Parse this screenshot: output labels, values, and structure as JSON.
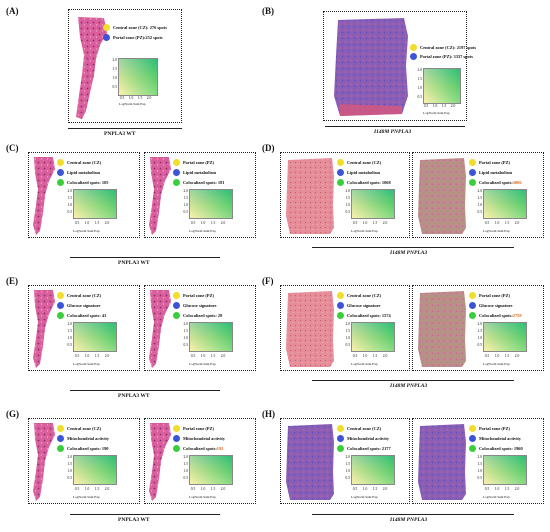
{
  "colors": {
    "cz": "#f2dd2a",
    "pz": "#3c54d6",
    "coloc": "#3ccd3c",
    "highlight": "#e0651c",
    "tissue": "#c9519a"
  },
  "icons": {
    "legend_dot": "circle",
    "tissue": "liver-tissue-section"
  },
  "axis": {
    "yticks": [
      "2.0",
      "1.5",
      "1.0",
      "0.5"
    ],
    "xticks": [
      "0.5",
      "1.0",
      "1.5",
      "2.0"
    ],
    "label": "LogNorm Sum Exp"
  },
  "panels": {
    "A": {
      "label": "(A)",
      "caption": "PNPLA3 WT",
      "cz": "Central zone (CZ): 276 spots",
      "pz": "Portal zone (PZ):252 spots"
    },
    "B": {
      "label": "(B)",
      "caption": "I148M PNPLA3",
      "cz": "Central zone (CZ): 2197 spots",
      "pz": "Portal zone (PZ): 3337 spots"
    },
    "C": {
      "label": "(C)",
      "caption": "PNPLA3 WT",
      "left": {
        "zone": "Central zone (CZ)",
        "sig": "Lipid metabolism",
        "coloc": "Colocalized spots: 105"
      },
      "right": {
        "zone": "Portal zone (PZ)",
        "sig": "Lipid metabolism",
        "coloc": "Colocalized spots: 181"
      }
    },
    "D": {
      "label": "(D)",
      "caption": "I148M PNPLA3",
      "left": {
        "zone": "Central zone (CZ)",
        "sig": "Lipid metabolism",
        "coloc": "Colocalized spots: 1068"
      },
      "right": {
        "zone": "Portal zone (PZ)",
        "sig": "Lipid metabolism",
        "coloc_pre": "Colocalized spots: ",
        "coloc_num": "3006"
      }
    },
    "E": {
      "label": "(E)",
      "caption": "PNPLA3 WT",
      "left": {
        "zone": "Central zone (CZ)",
        "sig": "Glucose signature",
        "coloc": "Colocalized spots: 43"
      },
      "right": {
        "zone": "Portal zone (PZ)",
        "sig": "Glucose signature",
        "coloc": "Colocalized spots: 28"
      }
    },
    "F": {
      "label": "(F)",
      "caption": "I148M PNPLA3",
      "left": {
        "zone": "Central zone (CZ)",
        "sig": "Glucose signature",
        "coloc": "Colocalized spots: 1574"
      },
      "right": {
        "zone": "Portal zone (PZ)",
        "sig": "Glucose signature",
        "coloc_pre": "Colocalized spots: ",
        "coloc_num": "2759"
      }
    },
    "G": {
      "label": "(G)",
      "caption": "PNPLA3 WT",
      "left": {
        "zone": "Central zone (CZ)",
        "sig": "Mitochondrial activity",
        "coloc": "Colocalized spots: 190"
      },
      "right": {
        "zone": "Portal zone (PZ)",
        "sig": "Mitochondrial activity",
        "coloc_pre": "Colocalized spots: ",
        "coloc_num": "192"
      }
    },
    "H": {
      "label": "(H)",
      "caption": "I148M PNPLA3",
      "left": {
        "zone": "Central zone (CZ)",
        "sig": "Mitochondrial activity",
        "coloc": "Colocalized spots: 2177"
      },
      "right": {
        "zone": "Portal zone (PZ)",
        "sig": "Mitochondrial activity",
        "coloc": "Colocalized spots: 1960"
      }
    }
  }
}
